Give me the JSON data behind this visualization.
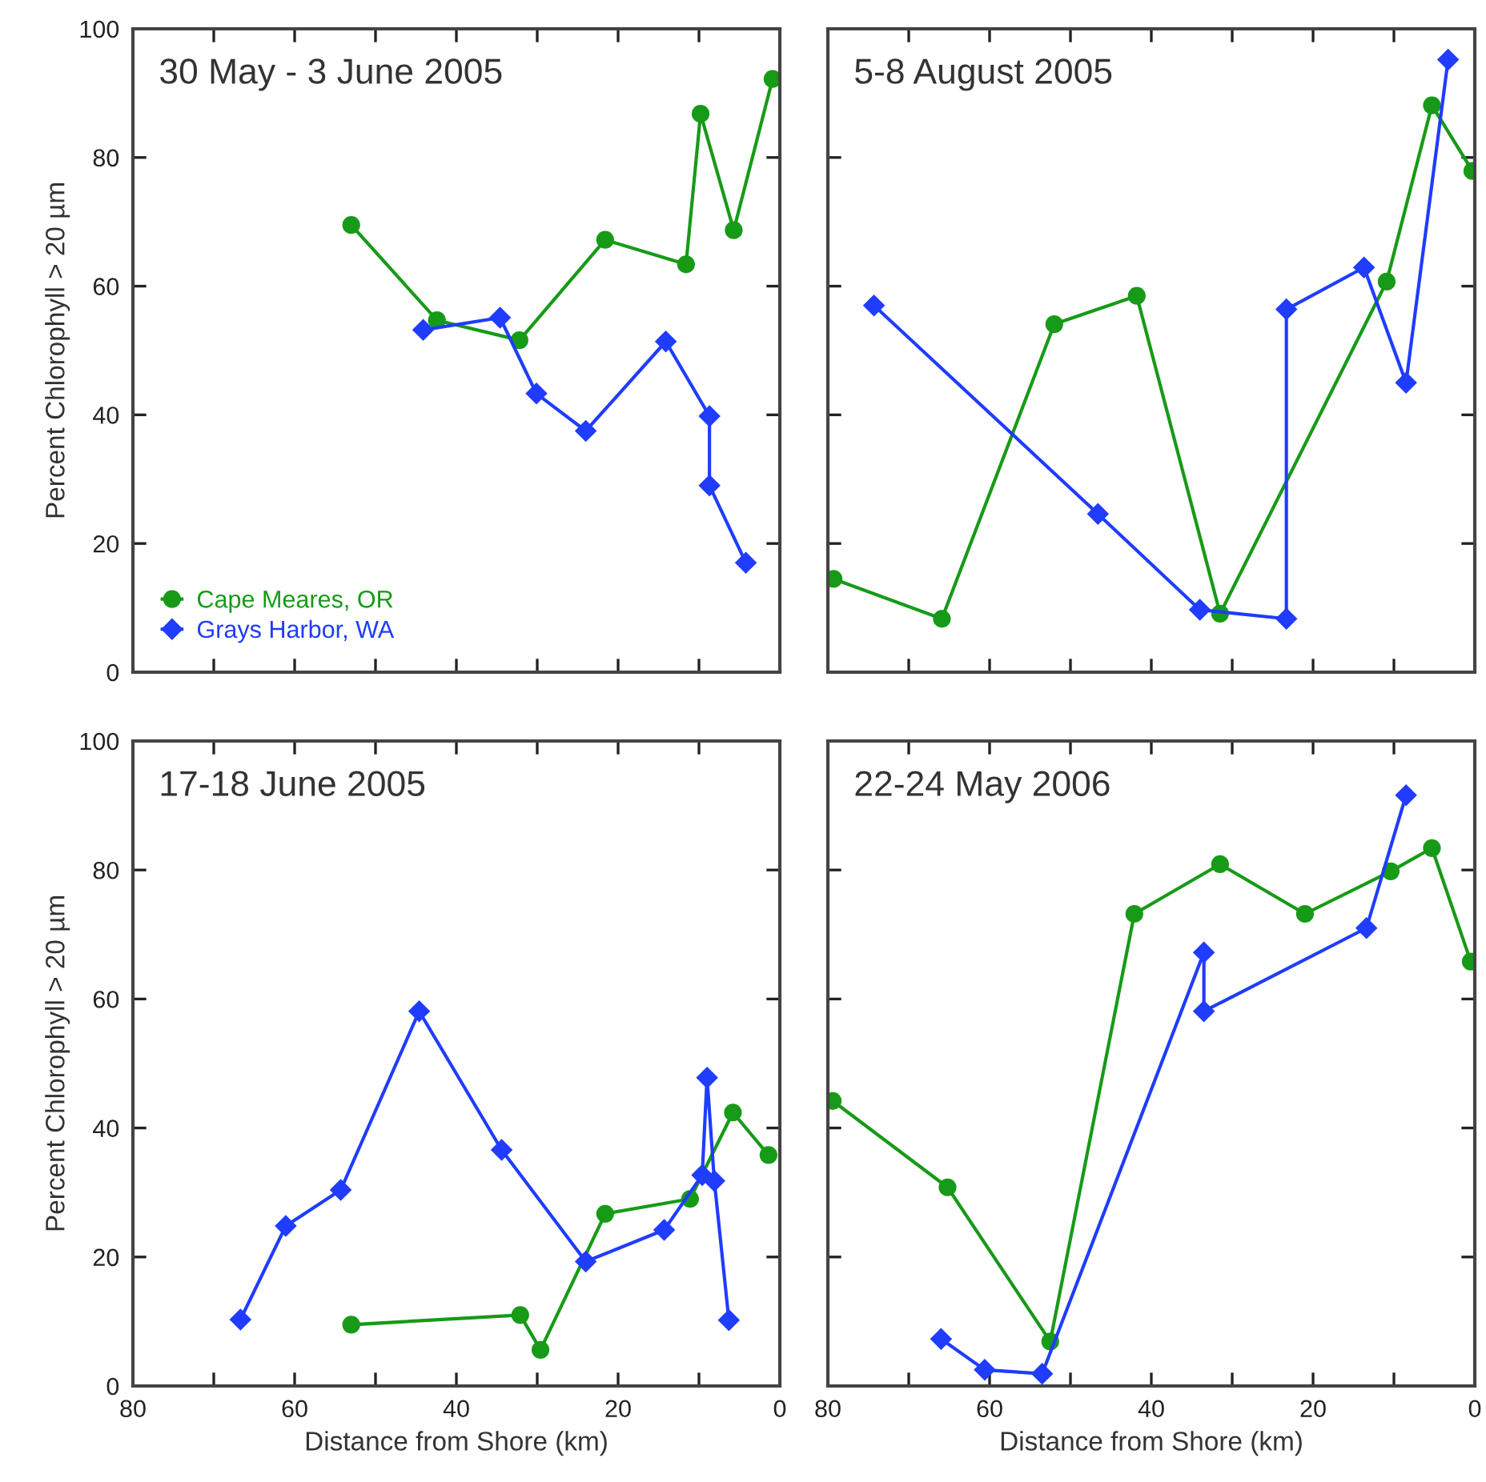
{
  "chart_data": [
    {
      "type": "line",
      "title": "30 May - 3 June 2005",
      "ylabel": "Percent Chlorophyll > 20 µm",
      "xlim": [
        80,
        0
      ],
      "ylim": [
        0,
        100
      ],
      "xticks": [
        {
          "value": 80,
          "label": null
        },
        {
          "value": 70,
          "label": null
        },
        {
          "value": 60,
          "label": null
        },
        {
          "value": 50,
          "label": null
        },
        {
          "value": 40,
          "label": null
        },
        {
          "value": 30,
          "label": null
        },
        {
          "value": 20,
          "label": null
        },
        {
          "value": 10,
          "label": null
        },
        {
          "value": 0,
          "label": null
        }
      ],
      "yticks": [
        0,
        20,
        40,
        60,
        80,
        100
      ],
      "tick_labels": "y",
      "legend": "bottom left",
      "grid": false,
      "series": [
        {
          "name": "Cape Meares, OR",
          "color": "#179a17",
          "marker": "circle",
          "x": [
            53.0,
            42.4,
            32.2,
            21.6,
            11.6,
            9.8,
            5.7,
            0.9
          ],
          "values": [
            69.5,
            54.7,
            51.6,
            67.2,
            63.4,
            86.8,
            68.7,
            92.2
          ]
        },
        {
          "name": "Grays Harbor, WA",
          "color": "#1f3cff",
          "marker": "diamond",
          "x": [
            44.1,
            34.6,
            30.1,
            24.0,
            14.1,
            8.7,
            8.7,
            4.2
          ],
          "values": [
            53.2,
            55.1,
            43.3,
            37.5,
            51.4,
            39.8,
            29.0,
            17.0
          ]
        }
      ]
    },
    {
      "type": "line",
      "title": "5-8 August 2005",
      "xlim": [
        80,
        0
      ],
      "ylim": [
        0,
        100
      ],
      "xticks": [
        {
          "value": 80,
          "label": null
        },
        {
          "value": 70,
          "label": null
        },
        {
          "value": 60,
          "label": null
        },
        {
          "value": 50,
          "label": null
        },
        {
          "value": 40,
          "label": null
        },
        {
          "value": 30,
          "label": null
        },
        {
          "value": 20,
          "label": null
        },
        {
          "value": 10,
          "label": null
        },
        {
          "value": 0,
          "label": null
        }
      ],
      "yticks": [
        {
          "value": 0,
          "label": null
        },
        {
          "value": 20,
          "label": null
        },
        {
          "value": 40,
          "label": null
        },
        {
          "value": 60,
          "label": null
        },
        {
          "value": 80,
          "label": null
        },
        {
          "value": 100,
          "label": null
        }
      ],
      "tick_labels": false,
      "grid": false,
      "series": [
        {
          "color": "#179a17",
          "marker": "circle",
          "x": [
            79.3,
            65.9,
            52.0,
            41.8,
            31.5,
            10.9,
            5.3,
            0.3
          ],
          "values": [
            14.5,
            8.3,
            54.1,
            58.5,
            9.1,
            60.7,
            88.1,
            77.9
          ]
        },
        {
          "color": "#1f3cff",
          "marker": "diamond",
          "x": [
            74.3,
            46.6,
            34.0,
            23.3,
            23.3,
            13.7,
            8.5,
            3.3
          ],
          "values": [
            57.0,
            24.6,
            9.7,
            8.3,
            56.4,
            62.9,
            45.0,
            95.2
          ]
        }
      ]
    },
    {
      "type": "line",
      "title": "17-18 June 2005",
      "xlabel": "Distance from Shore (km)",
      "ylabel": "Percent Chlorophyll > 20 µm",
      "xlim": [
        80,
        0
      ],
      "ylim": [
        0,
        100
      ],
      "xticks": [
        80,
        {
          "value": 70,
          "label": null
        },
        60,
        {
          "value": 50,
          "label": null
        },
        40,
        {
          "value": 30,
          "label": null
        },
        20,
        {
          "value": 10,
          "label": null
        },
        0
      ],
      "yticks": [
        0,
        20,
        40,
        60,
        80,
        100
      ],
      "grid": false,
      "series": [
        {
          "color": "#179a17",
          "marker": "circle",
          "x": [
            53.0,
            32.1,
            29.6,
            21.6,
            11.1,
            5.8,
            1.4
          ],
          "values": [
            9.5,
            11.0,
            5.6,
            26.7,
            29.0,
            42.4,
            35.8
          ]
        },
        {
          "color": "#1f3cff",
          "marker": "diamond",
          "x": [
            66.7,
            61.1,
            54.3,
            44.6,
            34.4,
            24.0,
            14.3,
            9.6,
            9.0,
            8.1,
            6.3
          ],
          "values": [
            10.3,
            24.8,
            30.4,
            58.1,
            36.6,
            19.3,
            24.2,
            32.7,
            47.8,
            31.8,
            10.2
          ]
        }
      ]
    },
    {
      "type": "line",
      "title": "22-24 May 2006",
      "xlabel": "Distance from Shore (km)",
      "xlim": [
        80,
        0
      ],
      "ylim": [
        0,
        100
      ],
      "xticks": [
        80,
        {
          "value": 70,
          "label": null
        },
        60,
        {
          "value": 50,
          "label": null
        },
        40,
        {
          "value": 30,
          "label": null
        },
        20,
        {
          "value": 10,
          "label": null
        },
        0
      ],
      "yticks": [
        {
          "value": 0,
          "label": null
        },
        {
          "value": 20,
          "label": null
        },
        {
          "value": 40,
          "label": null
        },
        {
          "value": 60,
          "label": null
        },
        {
          "value": 80,
          "label": null
        },
        {
          "value": 100,
          "label": null
        }
      ],
      "tick_labels": "x",
      "grid": false,
      "series": [
        {
          "color": "#179a17",
          "marker": "circle",
          "x": [
            79.4,
            65.2,
            52.5,
            42.1,
            31.5,
            21.0,
            10.4,
            5.3,
            0.5
          ],
          "values": [
            44.2,
            30.8,
            6.9,
            73.2,
            80.9,
            73.2,
            79.8,
            83.4,
            65.8
          ]
        },
        {
          "color": "#1f3cff",
          "marker": "diamond",
          "x": [
            66.0,
            60.6,
            53.5,
            33.5,
            33.5,
            13.4,
            8.5
          ],
          "values": [
            7.3,
            2.5,
            1.9,
            67.2,
            58.1,
            71.0,
            91.6
          ]
        }
      ]
    }
  ]
}
